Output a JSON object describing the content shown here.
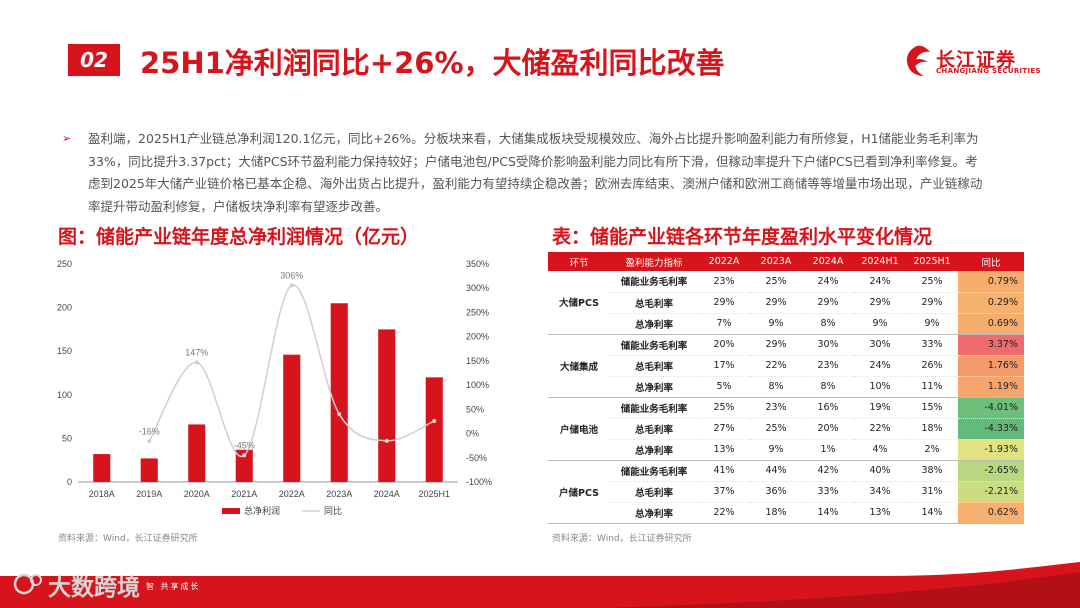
{
  "header": {
    "section_number": "02",
    "title": "25H1净利润同比+26%，大储盈利同比改善",
    "logo_name": "长江证券",
    "logo_sub": "CHANGJIANG SECURITIES"
  },
  "bullet": "盈利端，2025H1产业链总净利润120.1亿元，同比+26%。分板块来看，大储集成板块受规模效应、海外占比提升影响盈利能力有所修复，H1储能业务毛利率为33%，同比提升3.37pct；大储PCS环节盈利能力保持较好；户储电池包/PCS受降价影响盈利能力同比有所下滑，但稼动率提升下户储PCS已看到净利率修复。考虑到2025年大储产业链价格已基本企稳、海外出货占比提升，盈利能力有望持续企稳改善；欧洲去库结束、澳洲户储和欧洲工商储等等增量市场出现，产业链稼动率提升带动盈利修复，户储板块净利率有望逐步改善。",
  "chart_title": "图：储能产业链年度总净利润情况（亿元）",
  "table_title": "表：储能产业链各环节年度盈利水平变化情况",
  "source_left": "资料来源：Wind，长江证券研究所",
  "source_right": "资料来源：Wind，长江证券研究所",
  "chart_data": {
    "type": "bar",
    "categories": [
      "2018A",
      "2019A",
      "2020A",
      "2021A",
      "2022A",
      "2023A",
      "2024A",
      "2025H1"
    ],
    "series": [
      {
        "name": "总净利润",
        "type": "bar",
        "axis": "left",
        "values": [
          32,
          27,
          66,
          37,
          146,
          205,
          175,
          120
        ]
      },
      {
        "name": "同比",
        "type": "line",
        "axis": "right",
        "values": [
          null,
          -16,
          147,
          -45,
          306,
          40,
          -15,
          26
        ],
        "data_labels": [
          "",
          "-16%",
          "147%",
          "-45%",
          "306%",
          "",
          "",
          ""
        ]
      }
    ],
    "y_left": {
      "min": 0,
      "max": 250,
      "ticks": [
        "0",
        "50",
        "100",
        "150",
        "200",
        "250"
      ]
    },
    "y_right": {
      "min": -100,
      "max": 350,
      "ticks": [
        "-100%",
        "-50%",
        "0%",
        "50%",
        "100%",
        "150%",
        "200%",
        "250%",
        "300%",
        "350%"
      ]
    },
    "legend_position": "bottom",
    "grid": false,
    "colors": {
      "bar": "#d7141c",
      "line": "#cfcfcf"
    }
  },
  "table": {
    "headers": [
      "环节",
      "盈利能力指标",
      "2022A",
      "2023A",
      "2024A",
      "2024H1",
      "2025H1",
      "同比"
    ],
    "groups": [
      {
        "name": "大储PCS",
        "rows": [
          {
            "metric": "储能业务毛利率",
            "values": [
              "23%",
              "25%",
              "24%",
              "24%",
              "25%"
            ],
            "change": "0.79%",
            "color": "#f6ad6e"
          },
          {
            "metric": "总毛利率",
            "values": [
              "29%",
              "29%",
              "29%",
              "29%",
              "29%"
            ],
            "change": "0.29%",
            "color": "#f7b16f"
          },
          {
            "metric": "总净利率",
            "values": [
              "7%",
              "9%",
              "8%",
              "9%",
              "9%"
            ],
            "change": "0.69%",
            "color": "#f6ae6e"
          }
        ]
      },
      {
        "name": "大储集成",
        "rows": [
          {
            "metric": "储能业务毛利率",
            "values": [
              "20%",
              "29%",
              "30%",
              "30%",
              "33%"
            ],
            "change": "3.37%",
            "color": "#ee6b6e"
          },
          {
            "metric": "总毛利率",
            "values": [
              "17%",
              "22%",
              "23%",
              "24%",
              "26%"
            ],
            "change": "1.76%",
            "color": "#f49b6b"
          },
          {
            "metric": "总净利率",
            "values": [
              "5%",
              "8%",
              "8%",
              "10%",
              "11%"
            ],
            "change": "1.19%",
            "color": "#f5a56c"
          }
        ]
      },
      {
        "name": "户储电池",
        "rows": [
          {
            "metric": "储能业务毛利率",
            "values": [
              "25%",
              "23%",
              "16%",
              "19%",
              "15%"
            ],
            "change": "-4.01%",
            "color": "#6fbe7b"
          },
          {
            "metric": "总毛利率",
            "values": [
              "27%",
              "25%",
              "20%",
              "22%",
              "18%"
            ],
            "change": "-4.33%",
            "color": "#63bb7b"
          },
          {
            "metric": "总净利率",
            "values": [
              "13%",
              "9%",
              "1%",
              "4%",
              "2%"
            ],
            "change": "-1.93%",
            "color": "#e1e382"
          }
        ]
      },
      {
        "name": "户储PCS",
        "rows": [
          {
            "metric": "储能业务毛利率",
            "values": [
              "41%",
              "44%",
              "42%",
              "40%",
              "38%"
            ],
            "change": "-2.65%",
            "color": "#b7d780"
          },
          {
            "metric": "总毛利率",
            "values": [
              "37%",
              "36%",
              "33%",
              "34%",
              "31%"
            ],
            "change": "-2.21%",
            "color": "#cbdc81"
          },
          {
            "metric": "总净利率",
            "values": [
              "22%",
              "18%",
              "14%",
              "13%",
              "14%"
            ],
            "change": "0.62%",
            "color": "#f7b06f"
          }
        ]
      }
    ]
  },
  "footer": {
    "watermark": "大数跨境",
    "slogan": "智    共享成长"
  }
}
